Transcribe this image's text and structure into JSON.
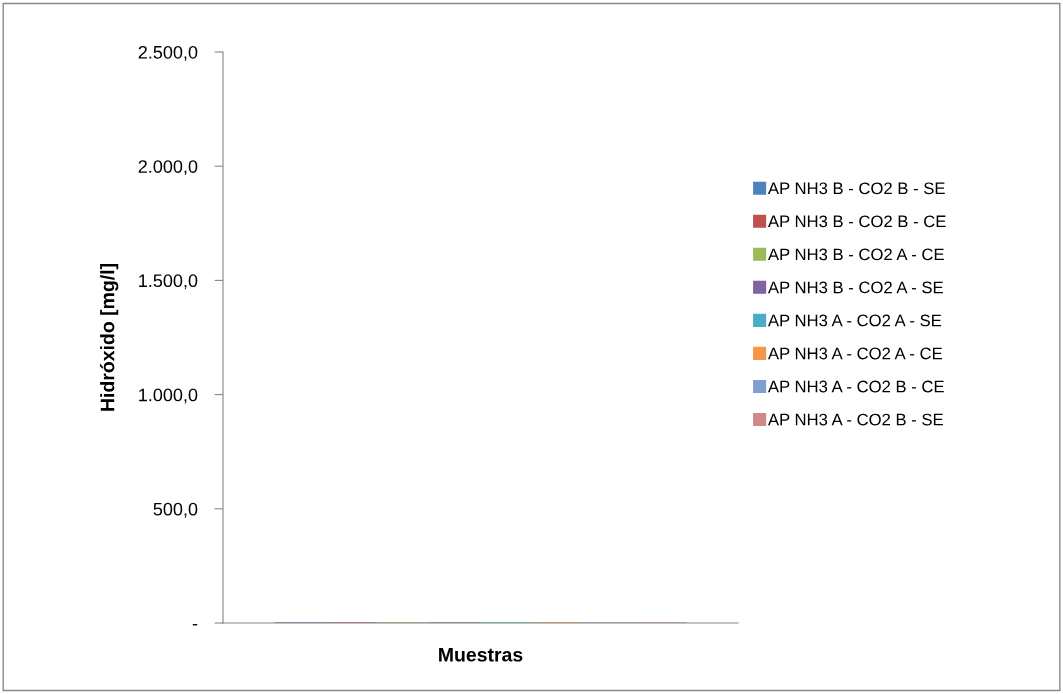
{
  "chart_data": {
    "type": "bar",
    "xlabel": "Muestras",
    "ylabel": "Hidróxido [mg/l]",
    "categories": [
      null
    ],
    "series": [
      {
        "name": "AP NH3 B - CO2 B - SE",
        "color": "#4f81bd",
        "values": [
          0
        ]
      },
      {
        "name": "AP NH3 B - CO2 B - CE",
        "color": "#c0504d",
        "values": [
          0
        ]
      },
      {
        "name": "AP NH3 B - CO2 A - CE",
        "color": "#9bbb59",
        "values": [
          0
        ]
      },
      {
        "name": "AP NH3 B - CO2 A - SE",
        "color": "#8064a2",
        "values": [
          0
        ]
      },
      {
        "name": "AP NH3 A - CO2 A - SE",
        "color": "#4bacc6",
        "values": [
          0
        ]
      },
      {
        "name": "AP NH3 A - CO2 A - CE",
        "color": "#f79646",
        "values": [
          0
        ]
      },
      {
        "name": "AP NH3 A - CO2 B - CE",
        "color": "#7f9fcf",
        "values": [
          0
        ]
      },
      {
        "name": "AP NH3 A - CO2 B - SE",
        "color": "#d08987",
        "values": [
          0
        ]
      }
    ],
    "ylim": [
      0,
      2500
    ],
    "yticks": [
      {
        "value": 0,
        "label": "-"
      },
      {
        "value": 500,
        "label": "500,0"
      },
      {
        "value": 1000,
        "label": "1.000,0"
      },
      {
        "value": 1500,
        "label": "1.500,0"
      },
      {
        "value": 2000,
        "label": "2.000,0"
      },
      {
        "value": 2500,
        "label": "2.500,0"
      }
    ],
    "grid": false,
    "legend": "right"
  }
}
